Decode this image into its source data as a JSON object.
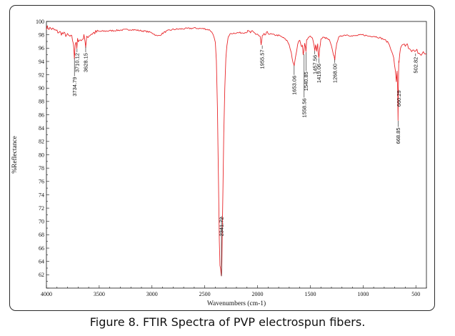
{
  "caption": "Figure 8. FTIR Spectra of PVP electrospun fibers.",
  "chart_data": {
    "type": "line",
    "xlabel": "Wavenumbers (cm-1)",
    "ylabel": "%Reflectance",
    "xlim": [
      4000,
      400
    ],
    "ylim": [
      60,
      100
    ],
    "x_reversed": true,
    "x_ticks": [
      4000,
      3500,
      3000,
      2500,
      2000,
      1500,
      1000,
      500
    ],
    "y_ticks": [
      62,
      64,
      66,
      68,
      70,
      72,
      74,
      76,
      78,
      80,
      82,
      84,
      86,
      88,
      90,
      92,
      94,
      96,
      98,
      100
    ],
    "line_color": "#e8262a",
    "grid": false,
    "series": [
      {
        "x": [
          4000,
          3950,
          3900,
          3850,
          3800,
          3760,
          3745,
          3735,
          3728,
          3720,
          3712,
          3705,
          3690,
          3670,
          3650,
          3640,
          3628,
          3618,
          3605,
          3580,
          3550,
          3500,
          3400,
          3300,
          3200,
          3100,
          3050,
          3000,
          2970,
          2950,
          2930,
          2910,
          2880,
          2850,
          2800,
          2700,
          2600,
          2500,
          2450,
          2420,
          2400,
          2390,
          2380,
          2370,
          2362,
          2356,
          2350,
          2346,
          2342,
          2338,
          2334,
          2328,
          2320,
          2310,
          2300,
          2290,
          2280,
          2270,
          2250,
          2200,
          2150,
          2100,
          2050,
          2000,
          1975,
          1966,
          1955,
          1930,
          1900,
          1850,
          1800,
          1760,
          1720,
          1700,
          1680,
          1665,
          1653,
          1640,
          1620,
          1600,
          1585,
          1575,
          1568,
          1560,
          1553,
          1545,
          1541,
          1535,
          1520,
          1500,
          1480,
          1465,
          1458,
          1450,
          1440,
          1430,
          1425,
          1419,
          1412,
          1400,
          1380,
          1350,
          1320,
          1300,
          1285,
          1275,
          1268,
          1260,
          1250,
          1230,
          1200,
          1150,
          1100,
          1050,
          1000,
          950,
          900,
          850,
          800,
          760,
          730,
          710,
          695,
          685,
          678,
          672,
          669,
          666,
          662,
          660,
          656,
          650,
          640,
          620,
          600,
          580,
          560,
          540,
          520,
          503,
          490,
          470,
          450,
          430,
          400
        ],
        "y": [
          99.1,
          98.9,
          98.5,
          98.2,
          97.9,
          97.6,
          96.8,
          94.5,
          96.6,
          97.0,
          95.9,
          97.2,
          97.3,
          97.1,
          97.6,
          97.9,
          96.2,
          97.5,
          97.8,
          98.1,
          98.3,
          98.5,
          98.6,
          98.7,
          98.8,
          98.6,
          98.5,
          98.3,
          98.0,
          97.8,
          97.9,
          98.1,
          98.4,
          98.6,
          98.8,
          98.9,
          99.0,
          98.9,
          98.7,
          98.1,
          96.8,
          94.0,
          87.0,
          76.0,
          67.0,
          63.5,
          63.0,
          62.4,
          61.8,
          64.0,
          68.5,
          74.5,
          83.0,
          90.0,
          94.5,
          96.5,
          97.4,
          97.9,
          98.2,
          98.3,
          98.3,
          98.4,
          98.3,
          98.1,
          97.6,
          96.4,
          97.6,
          98.0,
          98.2,
          98.0,
          97.9,
          97.6,
          97.1,
          96.5,
          95.3,
          93.8,
          93.4,
          94.6,
          96.6,
          97.3,
          96.3,
          96.4,
          95.1,
          95.6,
          96.8,
          96.1,
          95.4,
          97.2,
          97.6,
          97.7,
          97.5,
          96.4,
          95.6,
          96.6,
          95.6,
          96.7,
          95.2,
          94.5,
          95.8,
          97.3,
          97.6,
          97.5,
          97.2,
          96.3,
          95.2,
          94.8,
          94.3,
          95.6,
          96.8,
          97.6,
          97.9,
          98.0,
          97.8,
          97.9,
          98.0,
          97.8,
          97.8,
          97.6,
          97.3,
          96.8,
          95.6,
          94.5,
          92.6,
          91.0,
          92.6,
          89.5,
          85.1,
          89.8,
          94.0,
          93.7,
          94.6,
          95.5,
          96.3,
          96.5,
          96.3,
          96.4,
          96.1,
          95.8,
          95.5,
          95.3,
          95.6,
          95.2,
          95.0,
          95.3,
          95.1
        ]
      }
    ],
    "peak_labels": [
      {
        "label": "3734.79",
        "x": 3734.79,
        "y_tip": 94.5,
        "y_end": 92.0
      },
      {
        "label": "3710.12",
        "x": 3710.12,
        "y_tip": 95.9,
        "y_end": 95.6
      },
      {
        "label": "3628.15",
        "x": 3628.15,
        "y_tip": 96.2,
        "y_end": 95.6
      },
      {
        "label": "2341.72",
        "x": 2341.72,
        "y_tip": 61.8,
        "y_end": 71.0
      },
      {
        "label": "1955.57",
        "x": 1955.57,
        "y_tip": 96.4,
        "y_end": 96.1
      },
      {
        "label": "1653.06",
        "x": 1653.06,
        "y_tip": 93.4,
        "y_end": 92.2
      },
      {
        "label": "1558.56",
        "x": 1558.56,
        "y_tip": 95.1,
        "y_end": 88.8
      },
      {
        "label": "1540.85",
        "x": 1540.85,
        "y_tip": 95.4,
        "y_end": 92.8
      },
      {
        "label": "1457.56",
        "x": 1457.56,
        "y_tip": 95.6,
        "y_end": 95.3
      },
      {
        "label": "1419.06",
        "x": 1419.06,
        "y_tip": 94.5,
        "y_end": 94.0
      },
      {
        "label": "1268.00",
        "x": 1268.0,
        "y_tip": 94.3,
        "y_end": 94.0
      },
      {
        "label": "668.85",
        "x": 668.85,
        "y_tip": 85.1,
        "y_end": 84.4
      },
      {
        "label": "660.29",
        "x": 660.29,
        "y_tip": 89.8,
        "y_end": 90.0
      },
      {
        "label": "502.82",
        "x": 502.82,
        "y_tip": 95.2,
        "y_end": 95.0
      }
    ]
  }
}
